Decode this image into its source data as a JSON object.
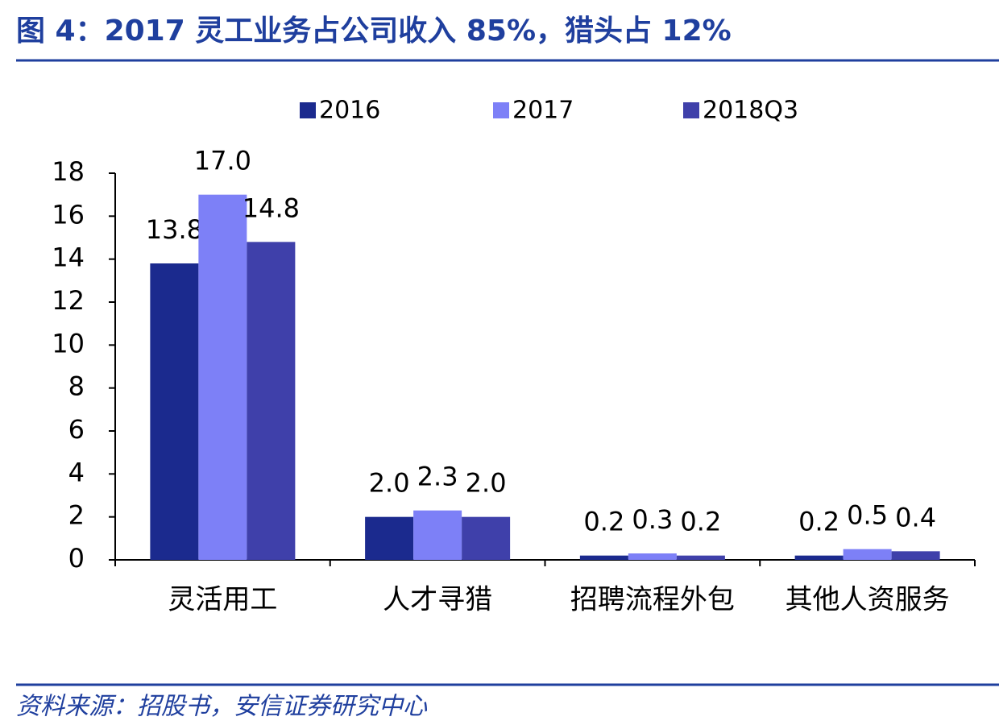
{
  "chart_data": {
    "type": "bar",
    "title": "图 4：2017 灵工业务占公司收入 85%，猎头占 12%",
    "source": "资料来源：招股书，安信证券研究中心",
    "categories": [
      "灵活用工",
      "人才寻猎",
      "招聘流程外包",
      "其他人资服务"
    ],
    "series": [
      {
        "name": "2016",
        "color": "#1b2a8e",
        "values": [
          13.8,
          2.0,
          0.2,
          0.2
        ],
        "value_labels": [
          "13.8",
          "2.0",
          "0.2",
          "0.2"
        ]
      },
      {
        "name": "2017",
        "color": "#7d80f7",
        "values": [
          17.0,
          2.3,
          0.3,
          0.5
        ],
        "value_labels": [
          "17.0",
          "2.3",
          "0.3",
          "0.5"
        ]
      },
      {
        "name": "2018Q3",
        "color": "#3f40aa",
        "values": [
          14.8,
          2.0,
          0.2,
          0.4
        ],
        "value_labels": [
          "14.8",
          "2.0",
          "0.2",
          "0.4"
        ]
      }
    ],
    "ylim": [
      0,
      18
    ],
    "yticks": [
      0,
      2,
      4,
      6,
      8,
      10,
      12,
      14,
      16,
      18
    ],
    "legend": "top"
  }
}
